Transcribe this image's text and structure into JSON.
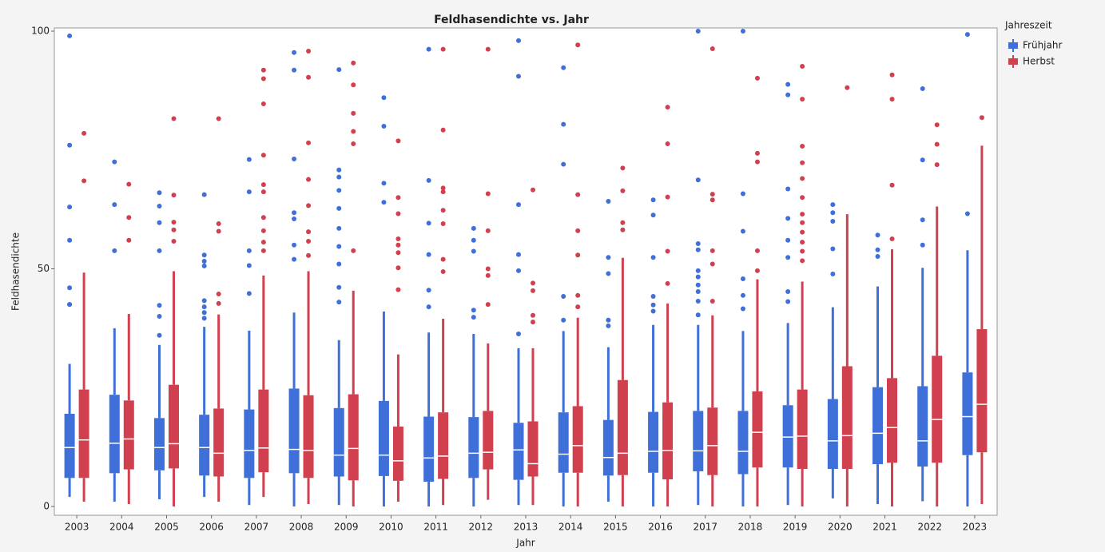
{
  "chart_data": {
    "type": "box",
    "title": "Feldhasendichte vs. Jahr",
    "x_label": "Jahr",
    "y_label": "Feldhasendichte",
    "legend_title": "Jahreszeit",
    "categories": [
      "2003",
      "2004",
      "2005",
      "2006",
      "2007",
      "2008",
      "2009",
      "2010",
      "2011",
      "2012",
      "2013",
      "2014",
      "2015",
      "2016",
      "2017",
      "2018",
      "2019",
      "2020",
      "2021",
      "2022",
      "2023"
    ],
    "ylim": [
      -1.85,
      100.67
    ],
    "yticks": [
      0,
      50,
      100
    ],
    "series": [
      {
        "name": "Frühjahr",
        "color": "#3f6fd8",
        "low": [
          2,
          1,
          1.5,
          2,
          0.3,
          0,
          0.3,
          0,
          0,
          0,
          0.3,
          0,
          1,
          0,
          0.3,
          0,
          0.3,
          1.7,
          0.5,
          1.1,
          0
        ],
        "q1": [
          6,
          7,
          7.6,
          6.5,
          6,
          7,
          6.3,
          6.4,
          5.2,
          6,
          5.6,
          7.1,
          6.5,
          7.1,
          7.4,
          6.8,
          8.2,
          7.9,
          8.9,
          8.4,
          10.8
        ],
        "median": [
          12.4,
          13.3,
          12.4,
          12.4,
          11.8,
          12,
          10.8,
          10.8,
          10.2,
          11.2,
          11.9,
          11,
          10.3,
          11.6,
          11.7,
          11.6,
          14.6,
          13.8,
          15.4,
          13.8,
          18.9
        ],
        "q3": [
          19.5,
          23.5,
          18.6,
          19.3,
          20.4,
          24.8,
          20.7,
          22.2,
          18.9,
          18.8,
          17.6,
          19.8,
          18.2,
          19.9,
          20.1,
          20.1,
          21.3,
          22.6,
          25.1,
          25.3,
          28.2
        ],
        "high": [
          30,
          37.5,
          34,
          37.8,
          37,
          40.8,
          35,
          41,
          36.6,
          36.3,
          33.3,
          36.9,
          33.5,
          38.2,
          38.2,
          36.9,
          38.6,
          41.9,
          46.3,
          50.2,
          53.9
        ],
        "outliers": [
          [
            99,
            76,
            63,
            56,
            46,
            42.5,
            42.5
          ],
          [
            72.5,
            63.5,
            53.8
          ],
          [
            66,
            63.2,
            59.7,
            53.8,
            42.3,
            40,
            36
          ],
          [
            65.6,
            52.9,
            51.6,
            50.6,
            43.3,
            42,
            40.8,
            39.6
          ],
          [
            73,
            66.2,
            53.8,
            50.7,
            44.8
          ],
          [
            95.5,
            91.8,
            73.1,
            61.8,
            60.5,
            55,
            52
          ],
          [
            91.9,
            70.8,
            69.3,
            66.5,
            62.7,
            58.5,
            54.7,
            51,
            46.1,
            43
          ],
          [
            86,
            80,
            68,
            64
          ],
          [
            96.2,
            68.6,
            59.6,
            53,
            45.5,
            42
          ],
          [
            58.5,
            56,
            53.7,
            41.3,
            39.8
          ],
          [
            98,
            90.5,
            63.5,
            53,
            49.6,
            36.3
          ],
          [
            92.3,
            80.4,
            72,
            44.2,
            39.2
          ],
          [
            64.2,
            52.4,
            49,
            39.2,
            38
          ],
          [
            64.5,
            61.3,
            52.4,
            44.2,
            42.4,
            41.1
          ],
          [
            100,
            68.7,
            55.3,
            54,
            49.6,
            48.3,
            46.6,
            45.2,
            43.2,
            40.3
          ],
          [
            100,
            65.8,
            57.9,
            47.9,
            44.4,
            41.6
          ],
          [
            88.8,
            86.6,
            66.8,
            60.6,
            56,
            52.4,
            45.2,
            43.1
          ],
          [
            63.5,
            61.8,
            60,
            54.2,
            48.9
          ],
          [
            57.1,
            54,
            52.6
          ],
          [
            87.9,
            72.9,
            60.3,
            55
          ],
          [
            99.3,
            61.6
          ]
        ]
      },
      {
        "name": "Herbst",
        "color": "#d0404f",
        "low": [
          1,
          0.5,
          0,
          1,
          2,
          0.5,
          0,
          1,
          0.3,
          1.4,
          0.3,
          0,
          0,
          0,
          0,
          0,
          0,
          0,
          0,
          0,
          0.5
        ],
        "q1": [
          6,
          7.8,
          8,
          6.3,
          7.2,
          6,
          5.5,
          5.4,
          5.8,
          7.8,
          6.3,
          7.1,
          6.6,
          5.7,
          6.6,
          8.2,
          7.9,
          7.9,
          9.2,
          9.2,
          11.4
        ],
        "median": [
          14,
          14.2,
          13.2,
          11.2,
          12.3,
          11.8,
          12.2,
          9.6,
          10.6,
          11.4,
          9,
          12.8,
          11.2,
          11.8,
          12.8,
          15.6,
          14.8,
          14.9,
          16.6,
          18.3,
          21.5
        ],
        "q3": [
          24.6,
          22.3,
          25.6,
          20.6,
          24.6,
          23.4,
          23.6,
          16.8,
          19.8,
          20.1,
          17.9,
          21.1,
          26.6,
          21.9,
          20.8,
          24.2,
          24.6,
          29.5,
          27,
          31.7,
          37.3
        ],
        "high": [
          49.2,
          40.5,
          49.5,
          40.4,
          48.6,
          49.5,
          45.4,
          32,
          39.5,
          34.3,
          33.3,
          39.7,
          52.3,
          42.7,
          40.2,
          47.8,
          47.3,
          61.5,
          54.1,
          63.1,
          75.9
        ],
        "outliers": [
          [
            78.5,
            68.5
          ],
          [
            67.8,
            60.8,
            56
          ],
          [
            81.6,
            65.5,
            59.8,
            58.2,
            55.8
          ],
          [
            81.6,
            59.5,
            57.9,
            44.7,
            42.7
          ],
          [
            91.8,
            90,
            84.7,
            73.9,
            67.7,
            66.2,
            60.8,
            58,
            55.6,
            53.8
          ],
          [
            95.8,
            90.3,
            76.5,
            68.8,
            63.3,
            57.8,
            55.8,
            52.8
          ],
          [
            93.3,
            88.7,
            82.7,
            78.9,
            76.3,
            53.8
          ],
          [
            76.9,
            65,
            61.6,
            56.3,
            55,
            53.4,
            50.2,
            45.6
          ],
          [
            96.2,
            79.2,
            67,
            66.2,
            62.3,
            59.5,
            52,
            49.4
          ],
          [
            96.2,
            65.8,
            58,
            50,
            48.6,
            42.5
          ],
          [
            66.6,
            47,
            45.4,
            40.2,
            38.8
          ],
          [
            97.1,
            65.6,
            58,
            52.9,
            44.4,
            42
          ],
          [
            71.2,
            66.4,
            59.7,
            58.2
          ],
          [
            84,
            76.3,
            65.1,
            53.7,
            46.9
          ],
          [
            96.3,
            65.7,
            64.5,
            53.8,
            51,
            43.2
          ],
          [
            90.1,
            74.3,
            72.5,
            53.8,
            49.6
          ],
          [
            92.6,
            85.7,
            75.8,
            72.3,
            69,
            65,
            61.5,
            59.7,
            57.7,
            55.6,
            53.7,
            51.7
          ],
          [
            88.1
          ],
          [
            90.8,
            85.7,
            67.6,
            56.3
          ],
          [
            80.3,
            76.2,
            71.9
          ],
          [
            81.8
          ]
        ]
      }
    ]
  }
}
